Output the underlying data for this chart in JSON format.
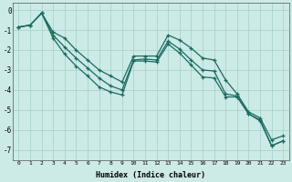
{
  "xlabel": "Humidex (Indice chaleur)",
  "xlim": [
    -0.5,
    23.5
  ],
  "ylim": [
    -7.5,
    0.35
  ],
  "yticks": [
    0,
    -1,
    -2,
    -3,
    -4,
    -5,
    -6,
    -7
  ],
  "xticks": [
    0,
    1,
    2,
    3,
    4,
    5,
    6,
    7,
    8,
    9,
    10,
    11,
    12,
    13,
    14,
    15,
    16,
    17,
    18,
    19,
    20,
    21,
    22,
    23
  ],
  "background_color": "#cceae6",
  "grid_color": "#aad4d0",
  "line_color": "#1a6b60",
  "line1_x": [
    0,
    1,
    2,
    3,
    4,
    5,
    6,
    7,
    8,
    9,
    10,
    11,
    12,
    13,
    14,
    15,
    16,
    17,
    18,
    19,
    20,
    21,
    22,
    23
  ],
  "line1_y": [
    -0.85,
    -0.75,
    -0.15,
    -1.1,
    -1.4,
    -2.0,
    -2.5,
    -3.0,
    -3.3,
    -3.6,
    -2.3,
    -2.3,
    -2.3,
    -1.25,
    -1.5,
    -1.9,
    -2.4,
    -2.5,
    -3.5,
    -4.2,
    -5.1,
    -5.4,
    -6.5,
    -6.3
  ],
  "line2_x": [
    0,
    1,
    2,
    3,
    4,
    5,
    6,
    7,
    8,
    9,
    10,
    11,
    12,
    13,
    14,
    15,
    16,
    17,
    18,
    19,
    20,
    21,
    22,
    23
  ],
  "line2_y": [
    -0.85,
    -0.75,
    -0.15,
    -1.25,
    -1.85,
    -2.4,
    -2.9,
    -3.4,
    -3.8,
    -4.0,
    -2.5,
    -2.45,
    -2.5,
    -1.55,
    -1.95,
    -2.5,
    -3.0,
    -3.05,
    -4.2,
    -4.3,
    -5.2,
    -5.5,
    -6.8,
    -6.55
  ],
  "line3_x": [
    0,
    1,
    2,
    3,
    4,
    5,
    6,
    7,
    8,
    9,
    10,
    11,
    12,
    13,
    14,
    15,
    16,
    17,
    18,
    19,
    20,
    21,
    22,
    23
  ],
  "line3_y": [
    -0.85,
    -0.75,
    -0.15,
    -1.4,
    -2.2,
    -2.8,
    -3.3,
    -3.85,
    -4.1,
    -4.25,
    -2.55,
    -2.55,
    -2.6,
    -1.7,
    -2.15,
    -2.75,
    -3.35,
    -3.4,
    -4.35,
    -4.35,
    -5.2,
    -5.55,
    -6.8,
    -6.55
  ]
}
